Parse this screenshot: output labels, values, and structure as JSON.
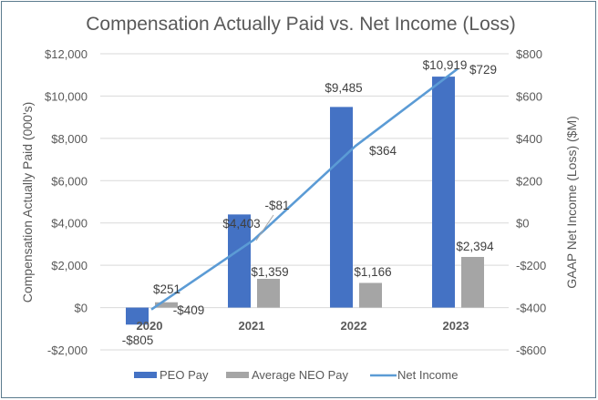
{
  "chart_data": {
    "type": "bar",
    "title": "Compensation Actually Paid vs. Net Income (Loss)",
    "categories": [
      "2020",
      "2021",
      "2022",
      "2023"
    ],
    "series": [
      {
        "name": "PEO Pay",
        "type": "bar",
        "axis": "left",
        "color": "#4472c4",
        "values": [
          -805,
          4403,
          9485,
          10919
        ],
        "labels": [
          "-$805",
          "$4,403",
          "$9,485",
          "$10,919"
        ]
      },
      {
        "name": "Average NEO Pay",
        "type": "bar",
        "axis": "left",
        "color": "#a5a5a5",
        "values": [
          251,
          1359,
          1166,
          2394
        ],
        "labels": [
          "$251",
          "$1,359",
          "$1,166",
          "$2,394"
        ]
      },
      {
        "name": "Net Income",
        "type": "line",
        "axis": "right",
        "color": "#5b9bd5",
        "values": [
          -409,
          -81,
          364,
          729
        ],
        "labels": [
          "-$409",
          "-$81",
          "$364",
          "$729"
        ]
      }
    ],
    "ylabel": "Compensation Actually Paid (000's)",
    "y2label": "GAAP Net Income (Loss) ($M)",
    "xlabel": "",
    "ylim": [
      -2000,
      12000
    ],
    "y2lim": [
      -600,
      800
    ],
    "yticks": [
      "$12,000",
      "$10,000",
      "$8,000",
      "$6,000",
      "$4,000",
      "$2,000",
      "$0",
      "-$2,000"
    ],
    "y2ticks": [
      "$800",
      "$600",
      "$400",
      "$200",
      "$0",
      "-$200",
      "-$400",
      "-$600"
    ],
    "grid": true,
    "legend_position": "bottom"
  }
}
